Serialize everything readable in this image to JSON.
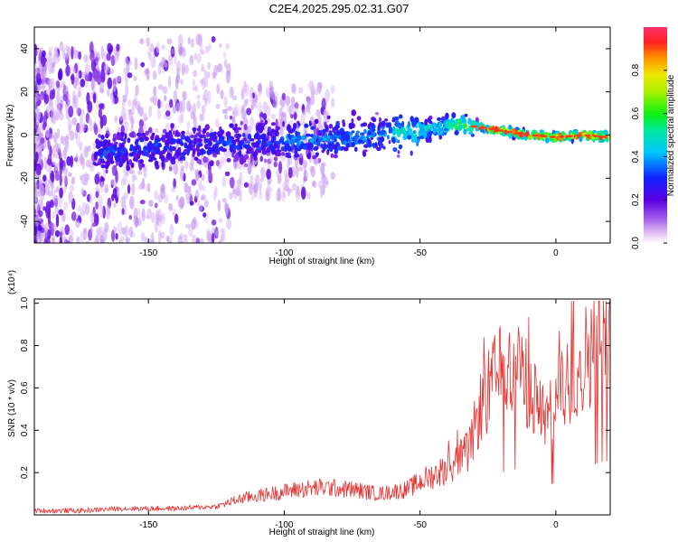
{
  "title": "C2E4.2025.295.02.31.G07",
  "colors": {
    "snr_line": "#e8302e",
    "axis": "#000000"
  },
  "chart_data": [
    {
      "type": "heatmap",
      "xlabel": "Height of straight line (km)",
      "ylabel": "Frequency (Hz)",
      "xlim": [
        -192,
        20
      ],
      "ylim": [
        -50,
        50
      ],
      "xticks": [
        "-150",
        "-100",
        "-50",
        "0"
      ],
      "xtick_values": [
        -150,
        -100,
        -50,
        0
      ],
      "yticks": [
        "-40",
        "-20",
        "0",
        "20",
        "40"
      ],
      "ytick_values": [
        -40,
        -20,
        0,
        20,
        40
      ],
      "colorbar": {
        "label": "Normalized spectral amplitude",
        "ticks": [
          "0.0",
          "0.2",
          "0.4",
          "0.6",
          "0.8"
        ],
        "tick_values": [
          0,
          0.2,
          0.4,
          0.6,
          0.8
        ],
        "range": [
          0,
          1
        ]
      },
      "ridge": [
        {
          "x": -165,
          "y": -8
        },
        {
          "x": -150,
          "y": -6
        },
        {
          "x": -125,
          "y": -4
        },
        {
          "x": -100,
          "y": -3
        },
        {
          "x": -75,
          "y": -1
        },
        {
          "x": -50,
          "y": 2
        },
        {
          "x": -35,
          "y": 5
        },
        {
          "x": -25,
          "y": 3
        },
        {
          "x": -10,
          "y": 0
        },
        {
          "x": 0,
          "y": -1
        },
        {
          "x": 10,
          "y": 0
        },
        {
          "x": 20,
          "y": -1
        }
      ]
    },
    {
      "type": "line",
      "xlabel": "Height of straight line (km)",
      "ylabel": "SNR (10 * v/v)",
      "y_multiplier": "(x10⁴)",
      "xlim": [
        -192,
        20
      ],
      "ylim": [
        0,
        1.02
      ],
      "xticks": [
        "-150",
        "-100",
        "-50",
        "0"
      ],
      "xtick_values": [
        -150,
        -100,
        -50,
        0
      ],
      "yticks": [
        "0.2",
        "0.4",
        "0.6",
        "0.8",
        "1.0"
      ],
      "ytick_values": [
        0.2,
        0.4,
        0.6,
        0.8,
        1.0
      ],
      "series": [
        {
          "x": [
            -192,
            -175,
            -160,
            -140,
            -125,
            -115,
            -105,
            -95,
            -85,
            -75,
            -65,
            -55,
            -48,
            -40,
            -32,
            -28,
            -22,
            -15,
            -8,
            -3,
            3,
            8,
            13,
            17,
            20
          ],
          "y": [
            0.02,
            0.02,
            0.03,
            0.03,
            0.04,
            0.08,
            0.1,
            0.12,
            0.13,
            0.12,
            0.1,
            0.12,
            0.17,
            0.22,
            0.3,
            0.5,
            0.65,
            0.72,
            0.55,
            0.45,
            0.6,
            0.7,
            0.78,
            0.84,
            0.85
          ]
        }
      ]
    }
  ]
}
